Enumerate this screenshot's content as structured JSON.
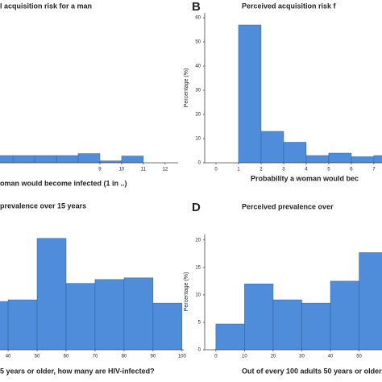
{
  "chart_data": [
    {
      "type": "histogram",
      "title": "l acquisition risk for a man",
      "xlabel": "oman would become infected (1 in ..)",
      "bins": [
        4,
        5,
        6,
        7,
        8,
        9,
        10,
        11
      ],
      "values": [
        3,
        3,
        3,
        3,
        3.8,
        0.8,
        2.8
      ],
      "color": "#4f8ddb",
      "xlim": [
        4.4,
        12.6
      ],
      "ylim": [
        0,
        62
      ],
      "xticks": [
        9,
        10,
        11,
        12
      ]
    },
    {
      "type": "histogram",
      "label": "B",
      "title": "Perceived acquisition risk f",
      "xlabel": "Probability a woman would bec",
      "ylabel": "Percentage (%)",
      "bins": [
        1,
        2,
        3,
        4,
        5,
        6,
        7,
        8
      ],
      "values": [
        57,
        13,
        8.5,
        3,
        4,
        2.5,
        3
      ],
      "color": "#4f8ddb",
      "xlim": [
        -0.5,
        7.36
      ],
      "ylim": [
        0,
        62
      ],
      "xticks": [
        0,
        1,
        2,
        3,
        4,
        5,
        6,
        7
      ],
      "yticks": [
        0,
        10,
        20,
        30,
        40,
        50,
        60
      ]
    },
    {
      "type": "histogram",
      "title": "prevalence over 15 years",
      "xlabel": "5 years or older, how many are HIV-infected?",
      "bins": [
        30,
        40,
        50,
        60,
        70,
        80,
        90,
        100
      ],
      "values": [
        8.8,
        9.1,
        20.3,
        12.1,
        12.8,
        13.1,
        8.5
      ],
      "color": "#4f8ddb",
      "xlim": [
        37.2,
        100.6
      ],
      "ylim": [
        0,
        21
      ],
      "xticks": [
        40,
        50,
        60,
        70,
        80,
        90,
        100
      ]
    },
    {
      "type": "histogram",
      "label": "D",
      "title": "Perceived prevalence over",
      "xlabel": "Out of every 100 adults 50 years or older,",
      "ylabel": "Percentage (%)",
      "bins": [
        0,
        10,
        20,
        30,
        40,
        50,
        60
      ],
      "values": [
        4.7,
        12,
        9.1,
        8.5,
        12.5,
        17.7
      ],
      "color": "#4f8ddb",
      "xlim": [
        -3.9,
        58
      ],
      "ylim": [
        0,
        21
      ],
      "xticks": [
        0,
        10,
        20,
        30,
        40,
        50
      ],
      "yticks": [
        0,
        5,
        10,
        15,
        20
      ]
    }
  ]
}
